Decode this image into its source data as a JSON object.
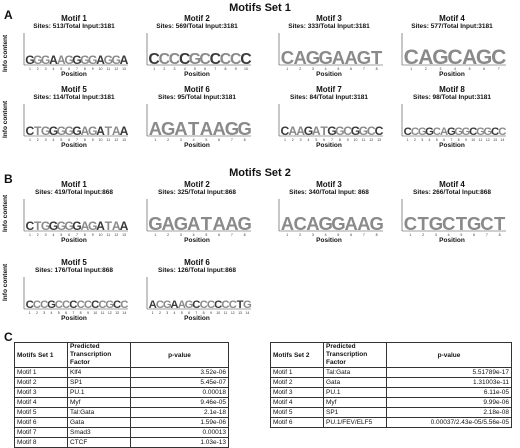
{
  "set1": {
    "title": "Motifs Set 1",
    "letter": "A",
    "ylabel": "Info content",
    "motifs": [
      {
        "name": "Motif 1",
        "sites": "Sites: 513/Total Input:3181",
        "xlabel": "Position",
        "seq": "GGGAAGGGGAGGA"
      },
      {
        "name": "Motif 2",
        "sites": "Sites: 569/Total Input:3181",
        "xlabel": "Position",
        "seq": "CCCCGCCCCC"
      },
      {
        "name": "Motif 3",
        "sites": "Sites: 333/Total Input:3181",
        "xlabel": "Position",
        "seq": "CAGGAAGT"
      },
      {
        "name": "Motif 4",
        "sites": "Sites: 577/Total Input:3181",
        "xlabel": "Position",
        "seq": "CAGCAGC"
      },
      {
        "name": "Motif 5",
        "sites": "Sites: 114/Total Input:3181",
        "xlabel": "Position",
        "seq": "CTGGGGGAGATAA"
      },
      {
        "name": "Motif 6",
        "sites": "Sites: 95/Total Input:3181",
        "xlabel": "Position",
        "seq": "AGATAAGG"
      },
      {
        "name": "Motif 7",
        "sites": "Sites: 84/Total Input:3181",
        "xlabel": "Position",
        "seq": "CAAGATGGCGGCC"
      },
      {
        "name": "Motif 8",
        "sites": "Sites: 98/Total Input:3181",
        "xlabel": "Position",
        "seq": "CCGGCAGGGCGGCC"
      }
    ]
  },
  "set2": {
    "title": "Motifs Set 2",
    "letter": "B",
    "ylabel": "Info content",
    "motifs": [
      {
        "name": "Motif 1",
        "sites": "Sites: 419/Total Input:868",
        "xlabel": "Position",
        "seq": "CTGGGGGAGATAA"
      },
      {
        "name": "Motif 2",
        "sites": "Sites: 325/Total Input:868",
        "xlabel": "Position",
        "seq": "GAGATAAG"
      },
      {
        "name": "Motif 3",
        "sites": "Sites: 340/Total Input: 868",
        "xlabel": "Position",
        "seq": "ACAGGAAG"
      },
      {
        "name": "Motif 4",
        "sites": "Sites: 266/Total Input:868",
        "xlabel": "Position",
        "seq": "CTGCTGCT"
      },
      {
        "name": "Motif 5",
        "sites": "Sites: 176/Total Input:868",
        "xlabel": "Position",
        "seq": "CCCGCCCCCCCGCC"
      },
      {
        "name": "Motif 6",
        "sites": "Sites: 126/Total Input:868",
        "xlabel": "Position",
        "seq": "ACGAAGCCCCCCTG"
      }
    ]
  },
  "panelC": {
    "letter": "C",
    "table1": {
      "headers": [
        "Motifs Set 1",
        "Predicted Transcription Factor",
        "p-value"
      ],
      "rows": [
        [
          "Motif 1",
          "Klf4",
          "3.52e-06"
        ],
        [
          "Motif 2",
          "SP1",
          "5.45e-07"
        ],
        [
          "Motif 3",
          "PU.1",
          "0.00018"
        ],
        [
          "Motif 4",
          "Myf",
          "9.46e-05"
        ],
        [
          "Motif 5",
          "Tal:Gata",
          "2.1e-18"
        ],
        [
          "Motif 6",
          "Gata",
          "1.59e-06"
        ],
        [
          "Motif 7",
          "Smad3",
          "0.00013"
        ],
        [
          "Motif 8",
          "CTCF",
          "1.03e-13"
        ]
      ]
    },
    "table2": {
      "headers": [
        "Motifs Set 2",
        "Predicted Transcription Factor",
        "p-value"
      ],
      "rows": [
        [
          "Motif 1",
          "Tal:Gata",
          "5.51789e-17"
        ],
        [
          "Motif 2",
          "Gata",
          "1.31003e-11"
        ],
        [
          "Motif 3",
          "PU.1",
          "6.11e-05"
        ],
        [
          "Motif 4",
          "Myf",
          "9.99e-06"
        ],
        [
          "Motif 5",
          "SP1",
          "2.18e-08"
        ],
        [
          "Motif 6",
          "PU.1/FEV/ELF5",
          "0.00037/2.43e-05/5.56e-05"
        ]
      ]
    }
  },
  "colors": {
    "logo_letters": "#8a8a8a",
    "logo_dark": "#3a3a3a"
  }
}
